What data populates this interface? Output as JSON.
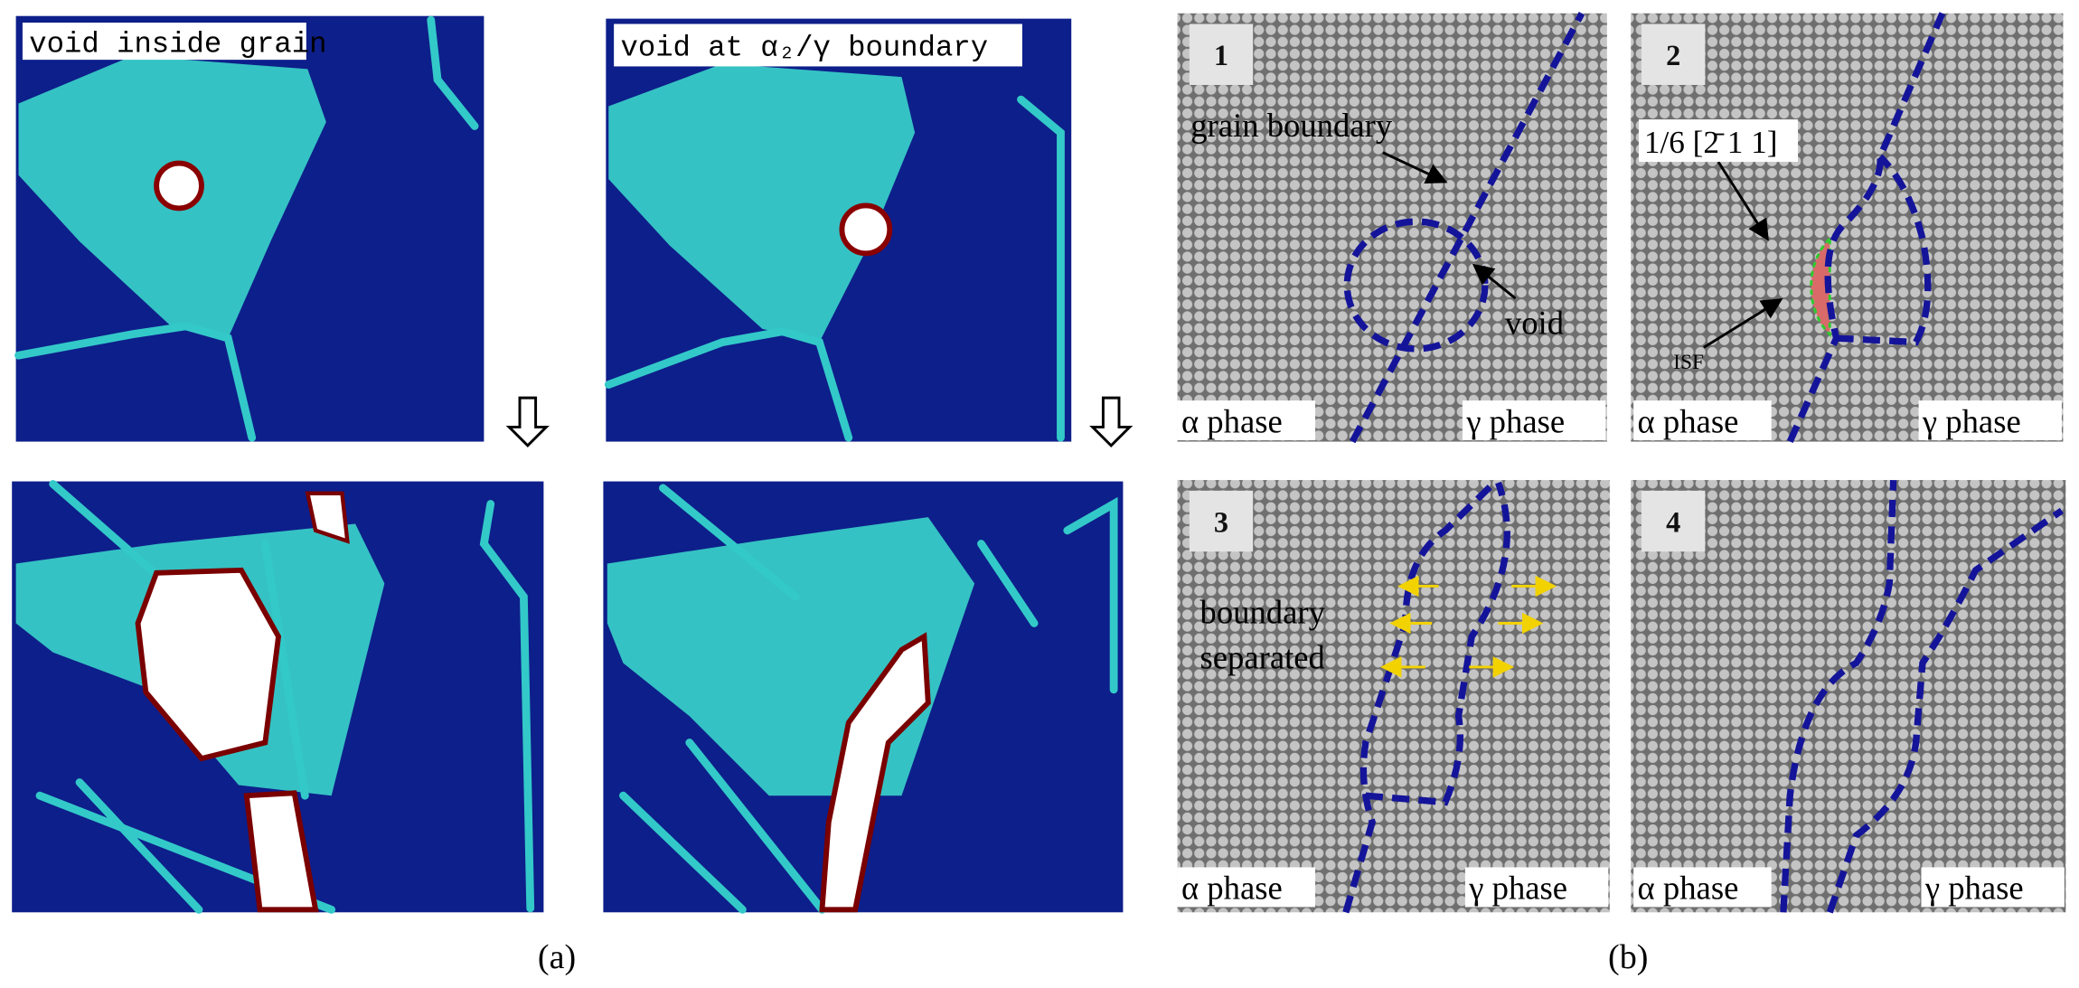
{
  "panel_a": {
    "label": "(a)",
    "captions": [
      "void inside grain",
      "void at α₂/γ  boundary"
    ]
  },
  "panel_b": {
    "label": "(b)",
    "frames": [
      {
        "number": "1",
        "annotations": [
          "grain boundary",
          "void"
        ],
        "left_phase": "α phase",
        "right_phase": "γ phase"
      },
      {
        "number": "2",
        "annotations": [
          "1/6 [2̄ 1 1]",
          "ISF"
        ],
        "left_phase": "α phase",
        "right_phase": "γ phase"
      },
      {
        "number": "3",
        "annotations": [
          "boundary",
          "separated"
        ],
        "left_phase": "α phase",
        "right_phase": "γ phase"
      },
      {
        "number": "4",
        "annotations": [],
        "left_phase": "α phase",
        "right_phase": "γ phase"
      }
    ]
  }
}
